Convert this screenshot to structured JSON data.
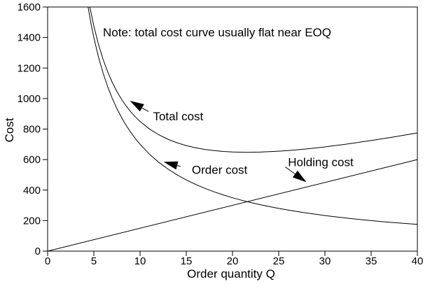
{
  "chart_data": {
    "type": "line",
    "title": "",
    "note": "Note: total cost curve usually flat near EOQ",
    "xlabel": "Order quantity Q",
    "ylabel": "Cost",
    "xlim": [
      0,
      40
    ],
    "ylim": [
      0,
      1600
    ],
    "x_ticks": [
      0,
      5,
      10,
      15,
      20,
      25,
      30,
      35,
      40
    ],
    "y_ticks": [
      0,
      200,
      400,
      600,
      800,
      1000,
      1200,
      1400,
      1600
    ],
    "grid": false,
    "legend_position": "inline-annotations",
    "line_color": "#000000",
    "series": [
      {
        "name": "Total cost",
        "points": [
          [
            4.57,
            1600
          ],
          [
            5,
            1475
          ],
          [
            5.5,
            1355.2
          ],
          [
            6,
            1256.7
          ],
          [
            6.5,
            1174.4
          ],
          [
            7,
            1105
          ],
          [
            7.5,
            1045.8
          ],
          [
            8,
            995
          ],
          [
            8.5,
            951
          ],
          [
            9,
            912.8
          ],
          [
            9.5,
            879.3
          ],
          [
            10,
            850
          ],
          [
            11,
            801.4
          ],
          [
            12,
            763.3
          ],
          [
            13,
            733.5
          ],
          [
            14,
            710
          ],
          [
            15,
            691.7
          ],
          [
            16,
            677.5
          ],
          [
            17,
            666.8
          ],
          [
            18,
            658.9
          ],
          [
            19,
            653.4
          ],
          [
            20,
            650
          ],
          [
            21,
            648.3
          ],
          [
            21.6,
            648
          ],
          [
            22,
            648.2
          ],
          [
            23,
            649.3
          ],
          [
            24,
            651.7
          ],
          [
            25,
            655
          ],
          [
            26,
            659.2
          ],
          [
            27,
            664.3
          ],
          [
            28,
            670
          ],
          [
            29,
            676.4
          ],
          [
            30,
            683.3
          ],
          [
            31,
            690.8
          ],
          [
            32,
            698.8
          ],
          [
            33,
            707.1
          ],
          [
            34,
            715.9
          ],
          [
            35,
            725
          ],
          [
            36,
            734.4
          ],
          [
            37,
            744.2
          ],
          [
            38,
            754.2
          ],
          [
            39,
            764.5
          ],
          [
            40,
            775
          ]
        ]
      },
      {
        "name": "Order cost",
        "points": [
          [
            4.375,
            1600
          ],
          [
            4.7,
            1489.4
          ],
          [
            5,
            1400
          ],
          [
            5.5,
            1272.7
          ],
          [
            6,
            1166.7
          ],
          [
            6.5,
            1076.9
          ],
          [
            7,
            1000
          ],
          [
            7.5,
            933.3
          ],
          [
            8,
            875
          ],
          [
            8.5,
            823.5
          ],
          [
            9,
            777.8
          ],
          [
            9.5,
            736.8
          ],
          [
            10,
            700
          ],
          [
            11,
            636.4
          ],
          [
            12,
            583.3
          ],
          [
            13,
            538.5
          ],
          [
            14,
            500
          ],
          [
            15,
            466.7
          ],
          [
            16,
            437.5
          ],
          [
            17,
            411.8
          ],
          [
            18,
            388.9
          ],
          [
            19,
            368.4
          ],
          [
            20,
            350
          ],
          [
            21,
            333.3
          ],
          [
            22,
            318.2
          ],
          [
            23,
            304.3
          ],
          [
            24,
            291.7
          ],
          [
            25,
            280
          ],
          [
            26,
            269.2
          ],
          [
            27,
            259.3
          ],
          [
            28,
            250
          ],
          [
            29,
            241.4
          ],
          [
            30,
            233.3
          ],
          [
            31,
            225.8
          ],
          [
            32,
            218.8
          ],
          [
            33,
            212.1
          ],
          [
            34,
            205.9
          ],
          [
            35,
            200
          ],
          [
            36,
            194.4
          ],
          [
            37,
            189.2
          ],
          [
            38,
            184.2
          ],
          [
            39,
            179.5
          ],
          [
            40,
            175
          ]
        ]
      },
      {
        "name": "Holding cost",
        "points": [
          [
            0,
            0
          ],
          [
            40,
            600
          ]
        ]
      }
    ],
    "annotations": [
      {
        "label": "Total cost",
        "label_at": [
          11.4,
          885
        ],
        "arrow_tail": [
          10.9,
          915
        ],
        "arrow_tip": [
          8.9,
          985
        ]
      },
      {
        "label": "Order cost",
        "label_at": [
          15.6,
          535
        ],
        "arrow_tail": [
          14.4,
          555
        ],
        "arrow_tip": [
          12.55,
          585
        ]
      },
      {
        "label": "Holding cost",
        "label_at": [
          26.0,
          585
        ],
        "arrow_tail": [
          25.7,
          552
        ],
        "arrow_tip": [
          28.0,
          452
        ]
      }
    ]
  }
}
